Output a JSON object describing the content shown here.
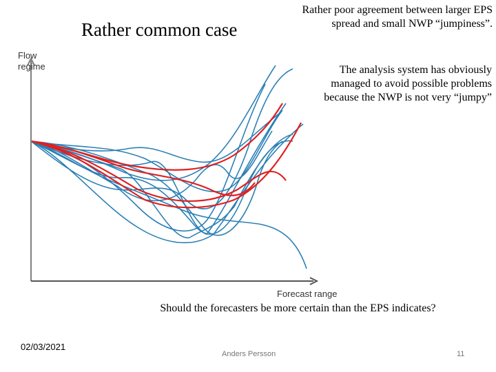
{
  "slide": {
    "title": "Rather common case",
    "note_top": "Rather poor agreement between larger EPS spread and small NWP “jumpiness”.",
    "note_right": "The analysis system has obviously managed to avoid possible problems because the NWP is not very “jumpy”",
    "question": "Should the forecasters be more certain than the EPS indicates?",
    "footer_date": "02/03/2021",
    "footer_author": "Anders Persson",
    "footer_page": "11"
  },
  "diagram": {
    "y_axis_label_line1": "Flow",
    "y_axis_label_line2": "regime",
    "x_axis_label": "Forecast range",
    "colors": {
      "ensemble": "#2a7fb5",
      "nwp": "#e02020",
      "axis": "#7f7f7f"
    }
  }
}
